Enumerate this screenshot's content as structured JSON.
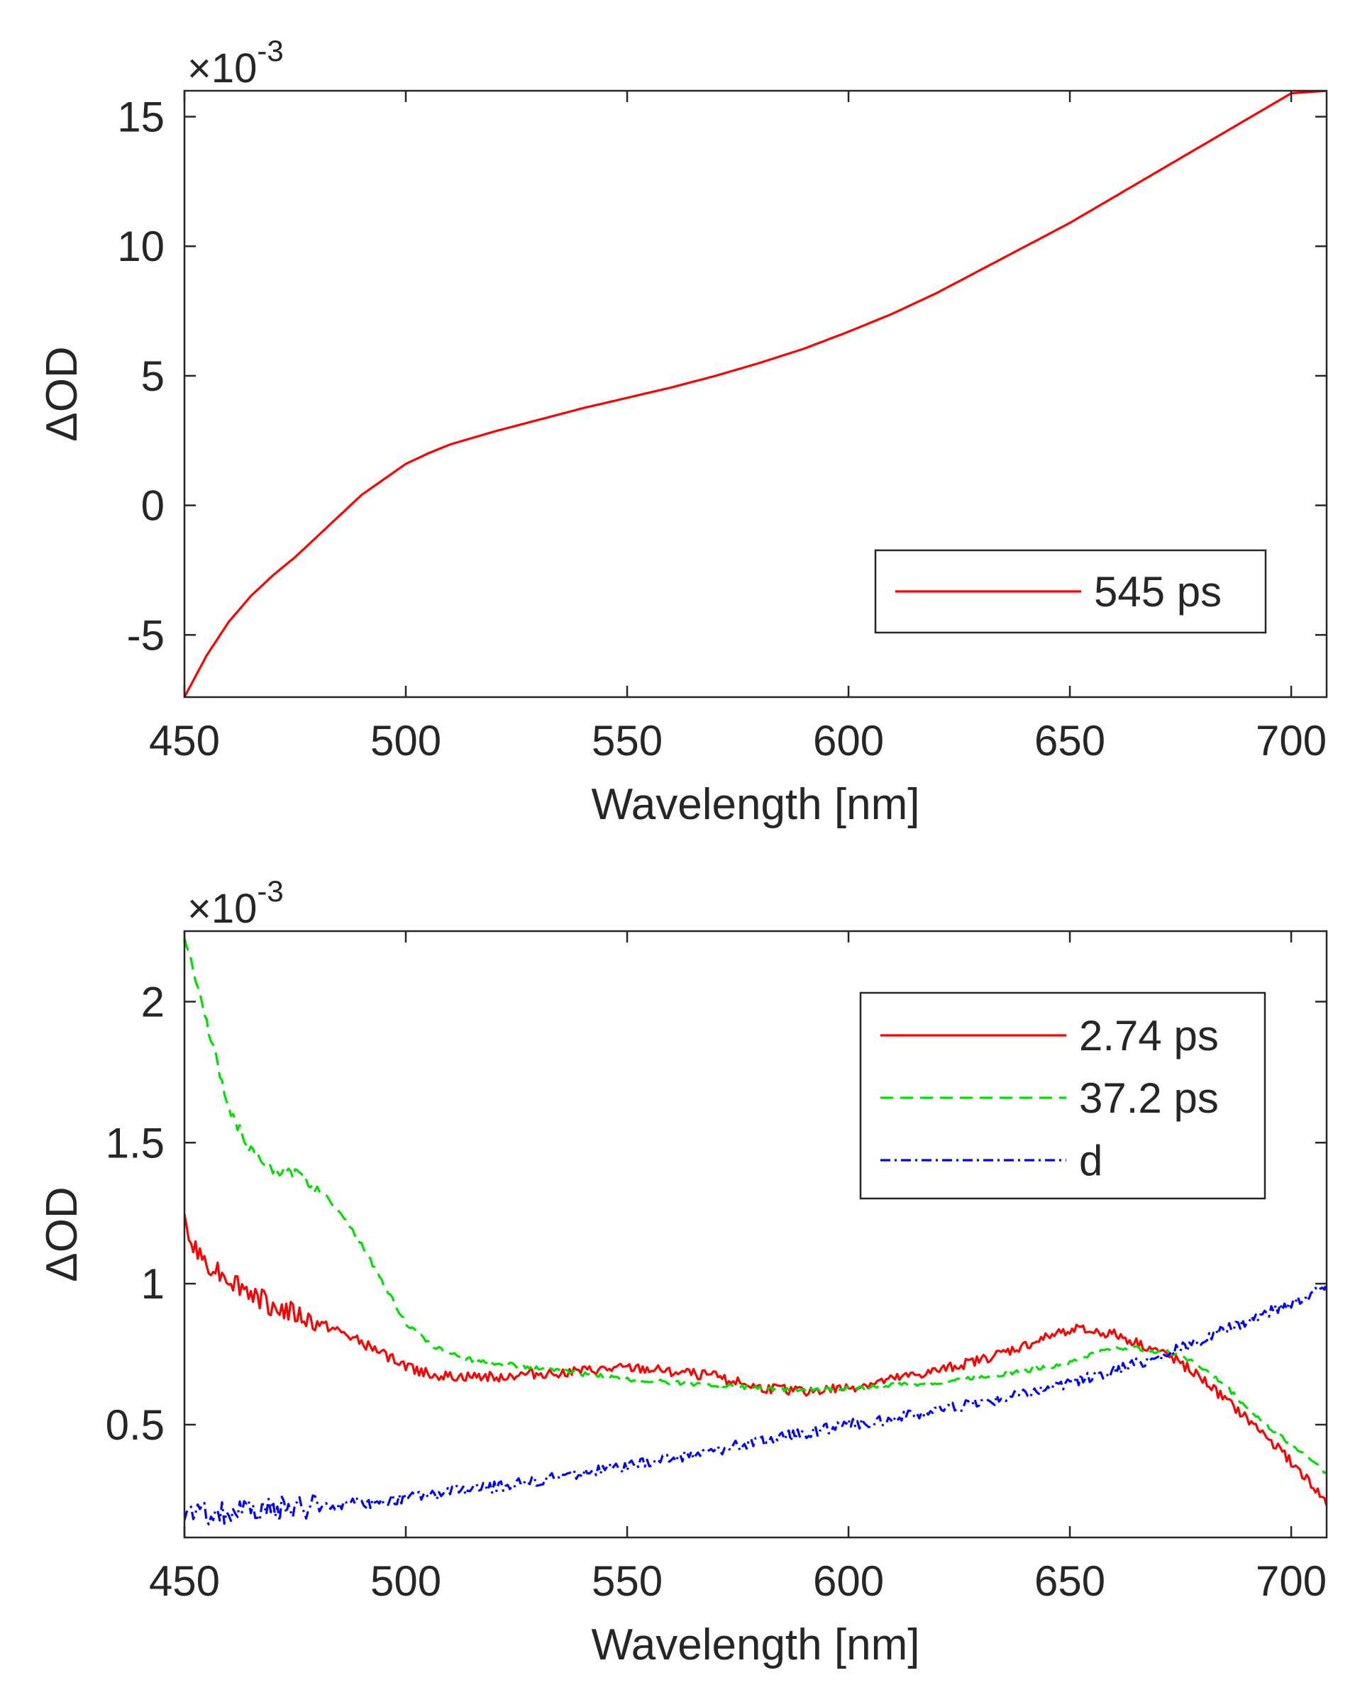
{
  "chart_data": [
    {
      "type": "line",
      "title": "",
      "xlabel": "Wavelength [nm]",
      "ylabel": "ΔOD",
      "multiplier_base": "×10",
      "multiplier_exp": "-3",
      "xlim": [
        450,
        708
      ],
      "ylim": [
        -7.4,
        16
      ],
      "xticks": [
        450,
        500,
        550,
        600,
        650,
        700
      ],
      "yticks": [
        -5,
        0,
        5,
        10,
        15
      ],
      "xtick_labels": [
        "450",
        "500",
        "550",
        "600",
        "650",
        "700"
      ],
      "ytick_labels": [
        "-5",
        "0",
        "5",
        "10",
        "15"
      ],
      "grid": false,
      "legend_position": "lower-right",
      "series": [
        {
          "name": "545 ps",
          "color": "#ff0000",
          "style": "solid",
          "noise": 0,
          "x": [
            450,
            455,
            460,
            465,
            470,
            475,
            480,
            485,
            490,
            495,
            500,
            505,
            510,
            520,
            530,
            540,
            550,
            560,
            570,
            580,
            590,
            600,
            610,
            620,
            630,
            640,
            650,
            660,
            670,
            680,
            690,
            700,
            708
          ],
          "y": [
            -7.4,
            -5.8,
            -4.5,
            -3.5,
            -2.7,
            -2.0,
            -1.2,
            -0.4,
            0.4,
            1.0,
            1.6,
            2.0,
            2.35,
            2.85,
            3.3,
            3.75,
            4.15,
            4.55,
            5.0,
            5.5,
            6.05,
            6.7,
            7.4,
            8.2,
            9.1,
            10.0,
            10.9,
            11.9,
            12.9,
            13.9,
            14.9,
            15.9,
            16.0
          ]
        }
      ]
    },
    {
      "type": "line",
      "title": "",
      "xlabel": "Wavelength [nm]",
      "ylabel": "ΔOD",
      "multiplier_base": "×10",
      "multiplier_exp": "-3",
      "xlim": [
        450,
        708
      ],
      "ylim": [
        0.1,
        2.25
      ],
      "xticks": [
        450,
        500,
        550,
        600,
        650,
        700
      ],
      "yticks": [
        0.5,
        1,
        1.5,
        2
      ],
      "xtick_labels": [
        "450",
        "500",
        "550",
        "600",
        "650",
        "700"
      ],
      "ytick_labels": [
        "0.5",
        "1",
        "1.5",
        "2"
      ],
      "grid": false,
      "legend_position": "top-right",
      "series": [
        {
          "name": "2.74 ps",
          "color": "#ff0000",
          "style": "solid",
          "noise": 0.018,
          "x": [
            450,
            452,
            455,
            460,
            465,
            470,
            475,
            480,
            485,
            490,
            495,
            500,
            505,
            510,
            520,
            530,
            540,
            550,
            560,
            570,
            580,
            590,
            600,
            610,
            620,
            630,
            640,
            645,
            650,
            655,
            660,
            665,
            670,
            675,
            680,
            685,
            690,
            695,
            700,
            705,
            708
          ],
          "y": [
            1.22,
            1.12,
            1.08,
            1.02,
            0.97,
            0.92,
            0.89,
            0.86,
            0.83,
            0.79,
            0.75,
            0.71,
            0.68,
            0.67,
            0.67,
            0.68,
            0.69,
            0.7,
            0.69,
            0.67,
            0.63,
            0.62,
            0.63,
            0.66,
            0.69,
            0.73,
            0.78,
            0.81,
            0.84,
            0.83,
            0.82,
            0.79,
            0.76,
            0.72,
            0.66,
            0.59,
            0.52,
            0.45,
            0.37,
            0.28,
            0.22
          ]
        },
        {
          "name": "37.2 ps",
          "color": "#00e000",
          "style": "dashed",
          "noise": 0.008,
          "x": [
            450,
            453,
            456,
            460,
            465,
            470,
            475,
            480,
            485,
            490,
            495,
            500,
            505,
            510,
            515,
            520,
            530,
            540,
            550,
            560,
            570,
            580,
            590,
            600,
            610,
            620,
            630,
            640,
            650,
            655,
            660,
            665,
            670,
            675,
            680,
            685,
            690,
            695,
            700,
            705,
            708
          ],
          "y": [
            2.24,
            2.05,
            1.87,
            1.62,
            1.47,
            1.4,
            1.39,
            1.34,
            1.26,
            1.14,
            1.0,
            0.86,
            0.79,
            0.75,
            0.73,
            0.72,
            0.7,
            0.68,
            0.66,
            0.65,
            0.64,
            0.63,
            0.62,
            0.63,
            0.64,
            0.65,
            0.67,
            0.69,
            0.72,
            0.75,
            0.77,
            0.77,
            0.76,
            0.75,
            0.7,
            0.64,
            0.56,
            0.49,
            0.43,
            0.37,
            0.33
          ]
        },
        {
          "name": "d",
          "color": "#0000ff",
          "style": "dashdot",
          "noise": 0.02,
          "x": [
            450,
            460,
            470,
            480,
            490,
            500,
            510,
            520,
            530,
            540,
            550,
            560,
            570,
            580,
            590,
            600,
            610,
            620,
            630,
            640,
            650,
            660,
            670,
            680,
            690,
            700,
            705,
            708
          ],
          "y": [
            0.18,
            0.19,
            0.2,
            0.21,
            0.22,
            0.24,
            0.26,
            0.28,
            0.3,
            0.33,
            0.35,
            0.38,
            0.41,
            0.44,
            0.47,
            0.5,
            0.52,
            0.55,
            0.58,
            0.61,
            0.65,
            0.69,
            0.74,
            0.8,
            0.87,
            0.93,
            0.97,
            0.99
          ]
        }
      ]
    }
  ]
}
